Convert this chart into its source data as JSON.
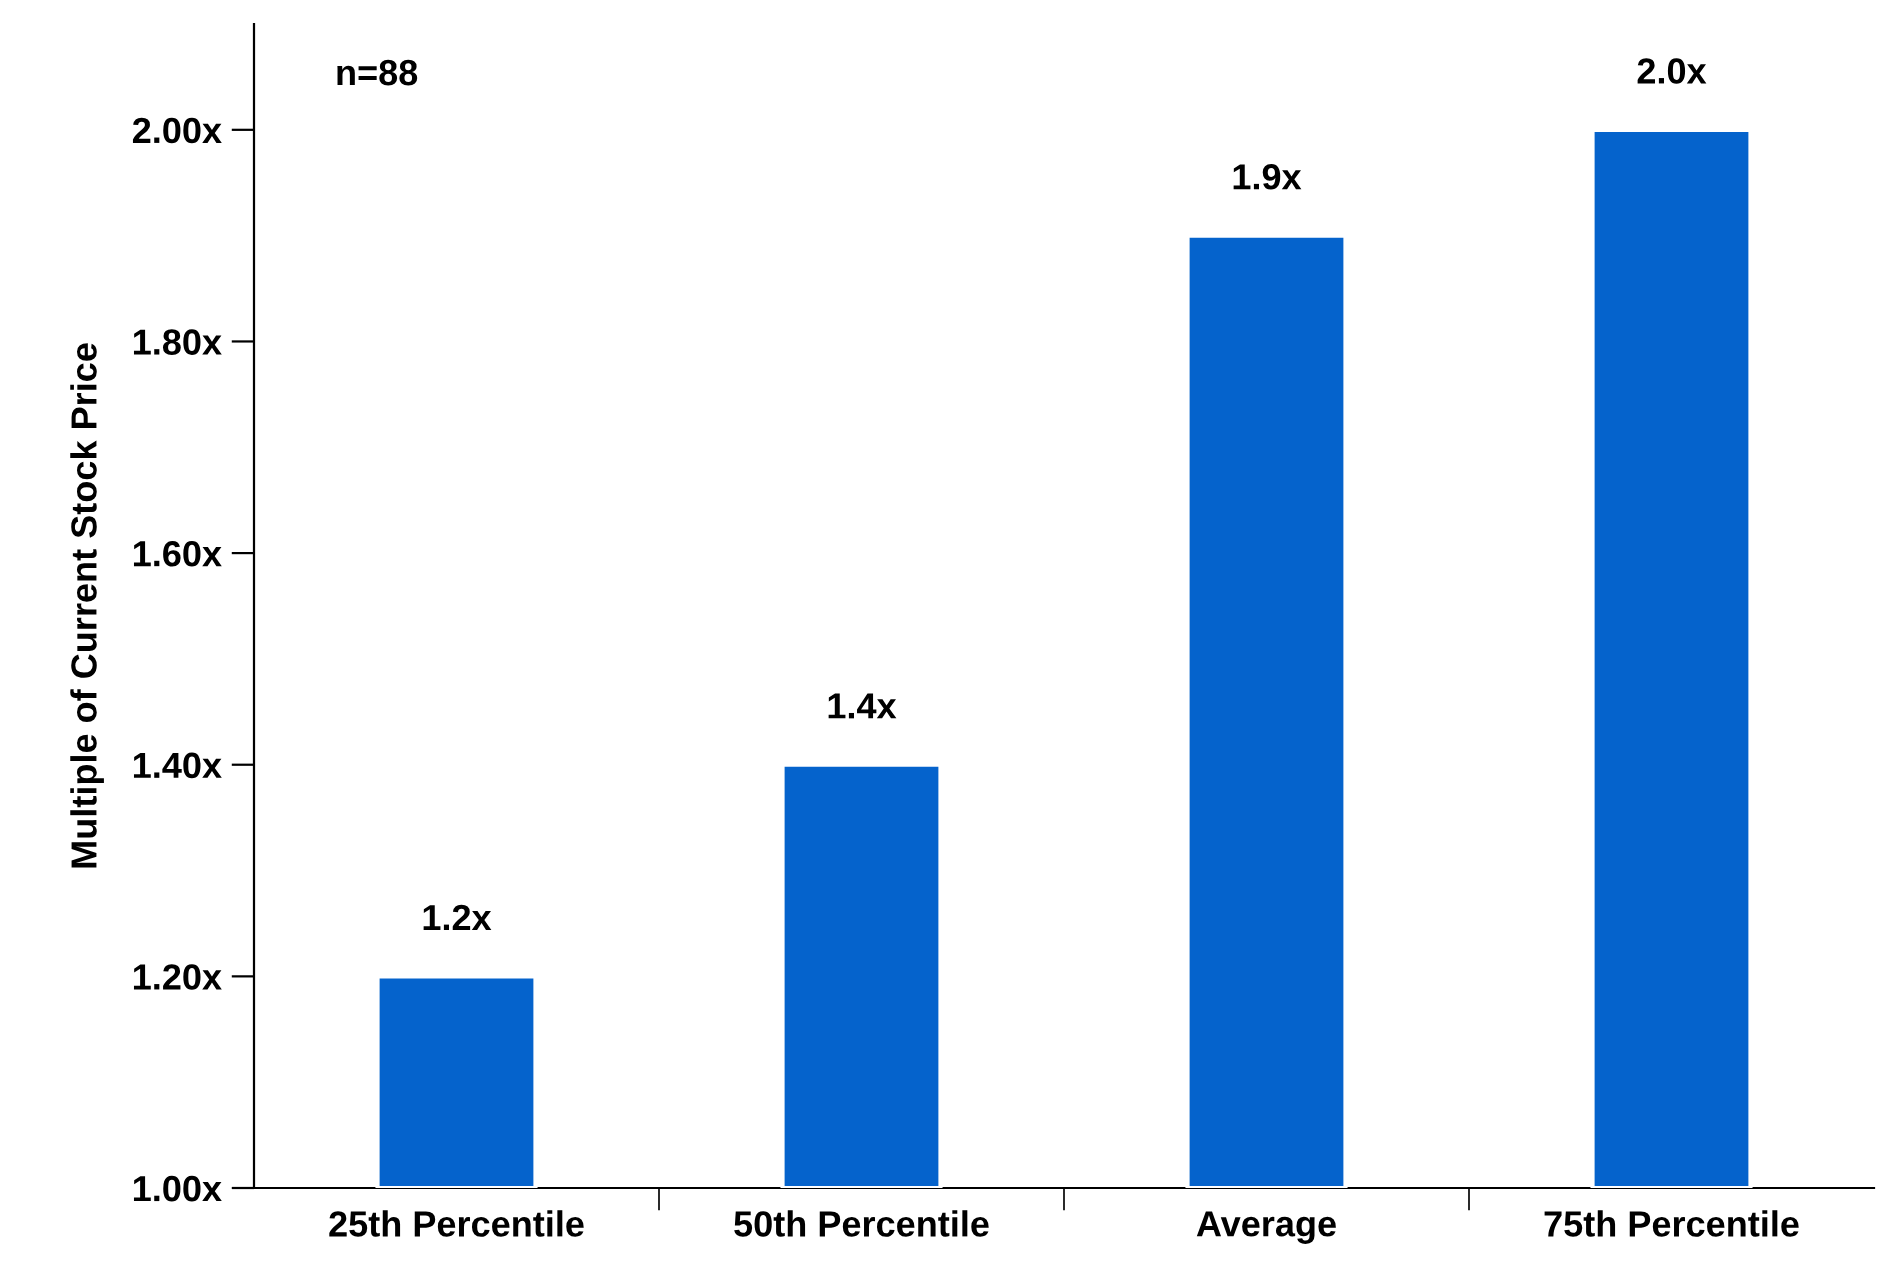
{
  "chart_data": {
    "type": "bar",
    "ylabel": "Multiple of Current Stock Price",
    "categories": [
      "25th Percentile",
      "50th Percentile",
      "Average",
      "75th Percentile"
    ],
    "values": [
      1.2,
      1.4,
      1.9,
      2.0
    ],
    "value_labels": [
      "1.2x",
      "1.4x",
      "1.9x",
      "2.0x"
    ],
    "color": "#0563cc",
    "ylim": [
      1.0,
      2.1
    ],
    "yticks": [
      {
        "value": 1.0,
        "label": "1.00x"
      },
      {
        "value": 1.2,
        "label": "1.20x"
      },
      {
        "value": 1.4,
        "label": "1.40x"
      },
      {
        "value": 1.6,
        "label": "1.60x"
      },
      {
        "value": 1.8,
        "label": "1.80x"
      },
      {
        "value": 2.0,
        "label": "2.00x"
      }
    ],
    "annotations": [
      "n=88"
    ],
    "grid": false,
    "legend": false
  }
}
